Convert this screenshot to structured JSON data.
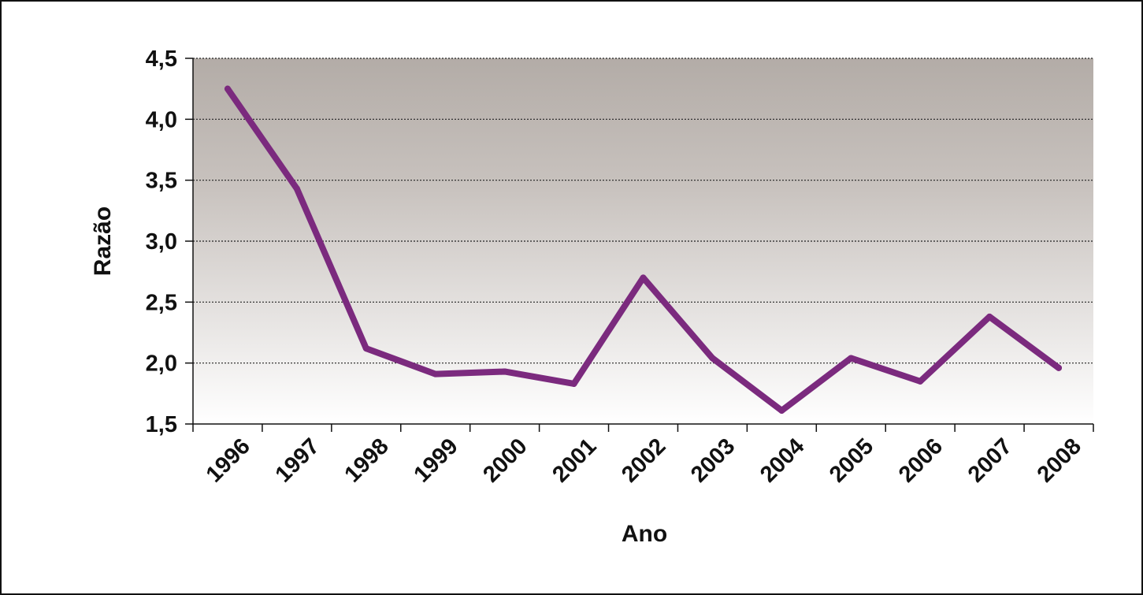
{
  "chart_data": {
    "type": "line",
    "title": "",
    "xlabel": "Ano",
    "ylabel": "Razão",
    "categories": [
      "1996",
      "1997",
      "1998",
      "1999",
      "2000",
      "2001",
      "2002",
      "2003",
      "2004",
      "2005",
      "2006",
      "2007",
      "2008"
    ],
    "series": [
      {
        "values": [
          4.25,
          3.43,
          2.12,
          1.91,
          1.93,
          1.83,
          2.7,
          2.04,
          1.61,
          2.04,
          1.85,
          2.38,
          1.96
        ]
      }
    ],
    "ylim": [
      1.5,
      4.5
    ],
    "yticks": [
      "1,5",
      "2,0",
      "2,5",
      "3,0",
      "3,5",
      "4,0",
      "4,5"
    ],
    "grid": "horizontal dashed",
    "legend": "none",
    "colors": {
      "line": "#7b2a7e",
      "plot_bg_top": "#b3aca7",
      "plot_bg_bottom": "#ffffff",
      "grid": "#222222",
      "axis": "#111111",
      "text": "#111111"
    }
  }
}
